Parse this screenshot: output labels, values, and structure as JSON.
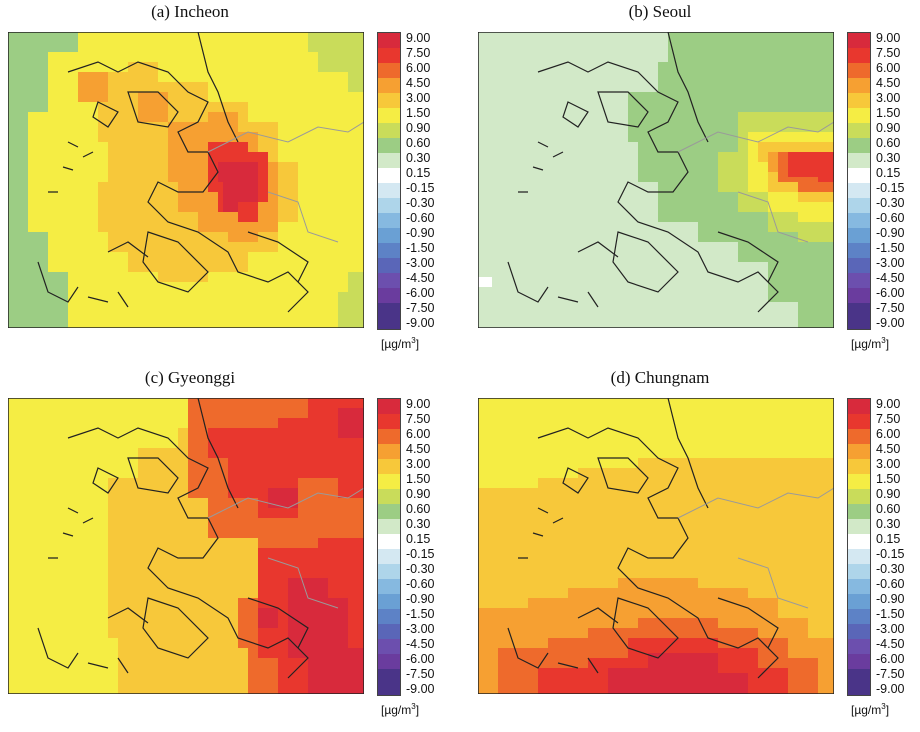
{
  "colorbar": {
    "labels": [
      "9.00",
      "7.50",
      "6.00",
      "4.50",
      "3.00",
      "1.50",
      "0.90",
      "0.60",
      "0.30",
      "0.15",
      "-0.15",
      "-0.30",
      "-0.60",
      "-0.90",
      "-1.50",
      "-3.00",
      "-4.50",
      "-6.00",
      "-7.50",
      "-9.00"
    ],
    "colors": [
      "#d82a3c",
      "#e8372e",
      "#ee6a2c",
      "#f6a032",
      "#f7c83a",
      "#f5ed44",
      "#c9dc5a",
      "#9ccd84",
      "#d2e9c8",
      "#ffffff",
      "#d4e8f2",
      "#aed5ea",
      "#86b9e0",
      "#6aa0d4",
      "#5d82c6",
      "#5a66b8",
      "#6c4fae",
      "#6a3c9e",
      "#4a3488"
    ],
    "unit_prefix": "[µg/m",
    "unit_sup": "3",
    "unit_suffix": "]"
  },
  "panels": [
    {
      "id": "a",
      "title": "(a) Incheon",
      "background": "#f5ed44",
      "hotspot": "Incheon"
    },
    {
      "id": "b",
      "title": "(b) Seoul",
      "background": "#d2e9c8",
      "hotspot": "Seoul"
    },
    {
      "id": "c",
      "title": "(c) Gyeonggi",
      "background": "#f5ed44",
      "hotspot": "Gyeonggi"
    },
    {
      "id": "d",
      "title": "(d) Chungnam",
      "background": "#f5ed44",
      "hotspot": "Chungnam"
    }
  ]
}
